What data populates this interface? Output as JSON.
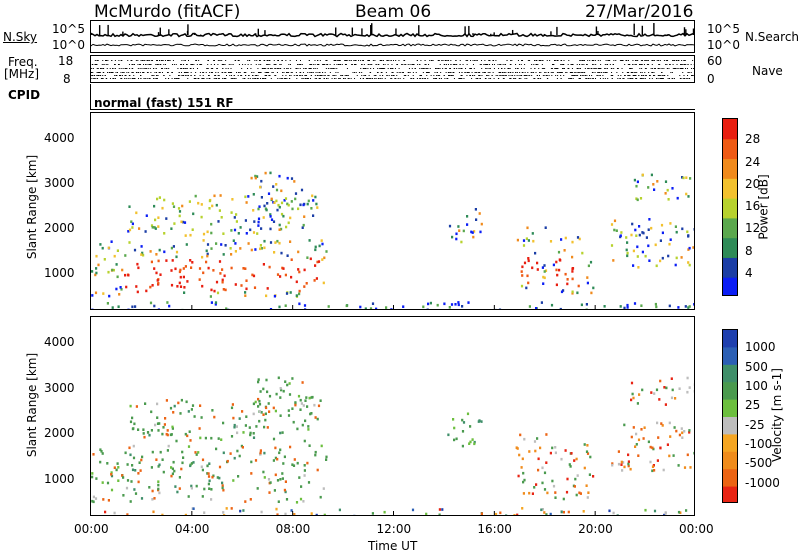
{
  "header": {
    "station": "McMurdo (fitACF)",
    "beam": "Beam 06",
    "date": "27/Mar/2016"
  },
  "noise": {
    "left_label": "N.Sky",
    "right_label": "N.Search",
    "left_top": "10^5",
    "left_bottom": "10^0",
    "right_top": "10^5",
    "right_bottom": "10^0"
  },
  "freq": {
    "left_label_1": "Freq.",
    "left_label_2": "[MHz]",
    "left_top": "18",
    "left_bottom": "8",
    "right_top": "60",
    "right_bottom": "0",
    "right_label": "Nave"
  },
  "cpid": {
    "label": "CPID",
    "text": "normal (fast) 151 RF"
  },
  "colors": {
    "power": [
      "#0b1ef5",
      "#1b3ea6",
      "#2e8b57",
      "#5aa84d",
      "#b7d22e",
      "#f2c12e",
      "#f08a1c",
      "#ef5a14",
      "#e81e10"
    ],
    "velocity": [
      "#1e3fae",
      "#2b5fb5",
      "#3f8f6a",
      "#4a9a4e",
      "#6cbf3e",
      "#bdbdbd",
      "#f5a623",
      "#f08c1c",
      "#ec6414",
      "#e82414"
    ]
  },
  "chart_data": [
    {
      "type": "heatmap",
      "name": "power-panel",
      "ylabel": "Slant Range [km]",
      "xlabel": "Time UT",
      "x_ticks": [
        "00:00",
        "04:00",
        "08:00",
        "12:00",
        "16:00",
        "20:00",
        "00:00"
      ],
      "y_ticks": [
        "1000",
        "2000",
        "3000",
        "4000"
      ],
      "ylim": [
        200,
        4600
      ],
      "xlim_hours": [
        0,
        24
      ],
      "colorbar": {
        "label": "Power [dB]",
        "ticks": [
          "4",
          "8",
          "12",
          "16",
          "20",
          "24",
          "28"
        ]
      }
    },
    {
      "type": "heatmap",
      "name": "velocity-panel",
      "ylabel": "Slant Range [km]",
      "xlabel": "Time UT",
      "x_ticks": [
        "00:00",
        "04:00",
        "08:00",
        "12:00",
        "16:00",
        "20:00",
        "00:00"
      ],
      "y_ticks": [
        "1000",
        "2000",
        "3000",
        "4000"
      ],
      "ylim": [
        200,
        4600
      ],
      "xlim_hours": [
        0,
        24
      ],
      "colorbar": {
        "label": "Velocity [m s-1]",
        "ticks": [
          "1000",
          "500",
          "100",
          "25",
          "-25",
          "-100",
          "-500",
          "-1000"
        ]
      }
    }
  ]
}
